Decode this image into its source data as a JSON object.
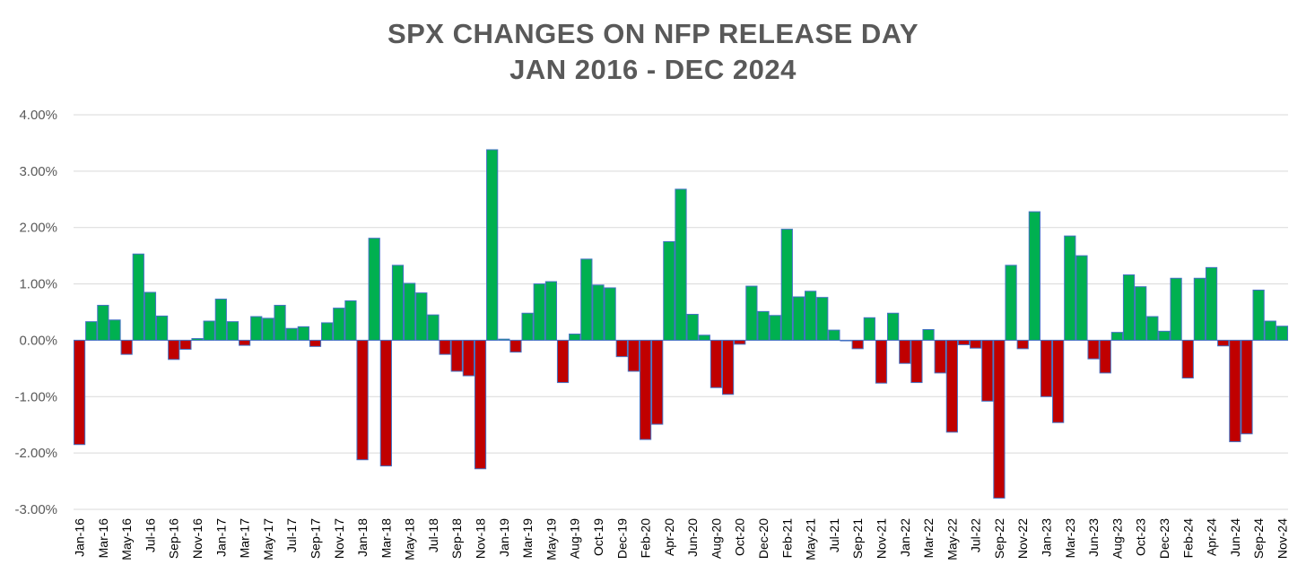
{
  "chart_data": {
    "type": "bar",
    "title": "SPX CHANGES ON NFP RELEASE DAY",
    "subtitle": "JAN 2016 - DEC 2024",
    "xlabel": "",
    "ylabel": "",
    "ylim": [
      -3.0,
      4.0
    ],
    "y_ticks": [
      "4.00%",
      "3.00%",
      "2.00%",
      "1.00%",
      "0.00%",
      "-1.00%",
      "-2.00%",
      "-3.00%"
    ],
    "y_tick_values": [
      4,
      3,
      2,
      1,
      0,
      -1,
      -2,
      -3
    ],
    "grid": true,
    "legend": "none",
    "colors": {
      "positive": "#00b050",
      "negative": "#c00000",
      "bar_border": "#4472c4",
      "grid": "#d9d9d9"
    },
    "x_tick_labels": [
      "Jan-16",
      "Mar-16",
      "May-16",
      "Jul-16",
      "Sep-16",
      "Nov-16",
      "Jan-17",
      "Mar-17",
      "May-17",
      "Jul-17",
      "Sep-17",
      "Nov-17",
      "Jan-18",
      "Mar-18",
      "May-18",
      "Jul-18",
      "Sep-18",
      "Nov-18",
      "Jan-19",
      "Mar-19",
      "May-19",
      "Aug-19",
      "Oct-19",
      "Dec-19",
      "Feb-20",
      "Apr-20",
      "Jun-20",
      "Aug-20",
      "Oct-20",
      "Dec-20",
      "Feb-21",
      "May-21",
      "Jul-21",
      "Sep-21",
      "Nov-21",
      "Jan-22",
      "Mar-22",
      "May-22",
      "Jul-22",
      "Sep-22",
      "Nov-22",
      "Jan-23",
      "Mar-23",
      "Jun-23",
      "Aug-23",
      "Oct-23",
      "Dec-23",
      "Feb-24",
      "Apr-24",
      "Jun-24",
      "Sep-24",
      "Nov-24"
    ],
    "x_tick_indices": [
      0,
      2,
      4,
      6,
      8,
      10,
      12,
      14,
      16,
      18,
      20,
      22,
      24,
      26,
      28,
      30,
      32,
      34,
      36,
      38,
      40,
      42,
      44,
      46,
      48,
      50,
      52,
      54,
      56,
      58,
      60,
      62,
      64,
      66,
      68,
      70,
      72,
      74,
      76,
      78,
      80,
      82,
      84,
      86,
      88,
      90,
      92,
      94,
      96,
      98,
      100,
      102
    ],
    "values": [
      -1.85,
      0.33,
      0.62,
      0.36,
      -0.25,
      1.53,
      0.85,
      0.43,
      -0.34,
      -0.16,
      0.03,
      0.34,
      0.73,
      0.33,
      -0.09,
      0.42,
      0.39,
      0.62,
      0.21,
      0.24,
      -0.11,
      0.31,
      0.57,
      0.7,
      -2.12,
      1.81,
      -2.23,
      1.33,
      1.01,
      0.84,
      0.45,
      -0.25,
      -0.55,
      -0.63,
      -2.28,
      3.38,
      0.02,
      -0.21,
      0.48,
      1.0,
      1.04,
      -0.75,
      0.11,
      1.44,
      0.98,
      0.93,
      -0.29,
      -0.55,
      -1.76,
      -1.49,
      1.75,
      2.68,
      0.46,
      0.09,
      -0.84,
      -0.96,
      -0.07,
      0.96,
      0.51,
      0.44,
      1.97,
      0.77,
      0.87,
      0.76,
      0.18,
      -0.01,
      -0.15,
      0.4,
      -0.76,
      0.48,
      -0.41,
      -0.75,
      0.19,
      -0.58,
      -1.63,
      -0.08,
      -0.14,
      -1.08,
      -2.8,
      1.33,
      -0.15,
      2.28,
      -1.0,
      -1.46,
      1.85,
      1.5,
      -0.33,
      -0.58,
      0.14,
      1.16,
      0.95,
      0.42,
      0.16,
      1.1,
      -0.67,
      1.1,
      1.29,
      -0.1,
      -1.8,
      -1.66,
      0.89,
      0.34,
      0.25
    ]
  }
}
